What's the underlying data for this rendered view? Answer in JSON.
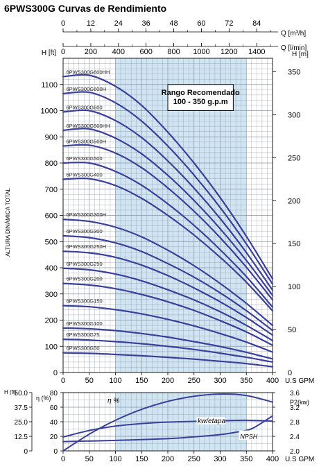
{
  "chart_data": [
    {
      "type": "line",
      "title": "6PWS300G Curvas de Rendimiento",
      "top_axes": [
        {
          "label": "Q [m³/h]",
          "ticks": [
            0,
            12,
            24,
            36,
            48,
            60,
            72,
            84
          ]
        },
        {
          "label": "Q [l/min]",
          "ticks": [
            0,
            200,
            400,
            600,
            800,
            1000,
            1200,
            1400
          ]
        }
      ],
      "xlabel": "U.S GPM",
      "xlim": [
        0,
        400
      ],
      "x_ticks": [
        0,
        50,
        100,
        150,
        200,
        250,
        300,
        350,
        400
      ],
      "ylabel": "ALTURA DINÁMICA TOTAL",
      "y_left_unit": "H [ft]",
      "y_left_ticks": [
        0,
        100,
        200,
        300,
        400,
        500,
        600,
        700,
        800,
        900,
        1000,
        1100
      ],
      "ylim": [
        0,
        1200
      ],
      "y_right_unit": "H [m]",
      "y_right_ticks": [
        0,
        50,
        100,
        150,
        200,
        250,
        300,
        350
      ],
      "grid": true,
      "annotation": {
        "title": "Rango Recomendado",
        "text": "100 - 350 g.p.m",
        "range": [
          100,
          350
        ]
      },
      "series": [
        {
          "name": "6PWS300G50",
          "points": [
            [
              0,
              75
            ],
            [
              50,
              73
            ],
            [
              100,
              69
            ],
            [
              150,
              64
            ],
            [
              200,
              58
            ],
            [
              250,
              51
            ],
            [
              300,
              43
            ],
            [
              350,
              34
            ],
            [
              400,
              22
            ]
          ]
        },
        {
          "name": "6PWS300G75",
          "points": [
            [
              0,
              127
            ],
            [
              50,
              124
            ],
            [
              100,
              118
            ],
            [
              150,
              110
            ],
            [
              200,
              100
            ],
            [
              250,
              88
            ],
            [
              300,
              74
            ],
            [
              350,
              58
            ],
            [
              400,
              40
            ]
          ]
        },
        {
          "name": "6PWS300G100",
          "points": [
            [
              0,
              170
            ],
            [
              50,
              167
            ],
            [
              100,
              160
            ],
            [
              150,
              149
            ],
            [
              200,
              135
            ],
            [
              250,
              118
            ],
            [
              300,
              99
            ],
            [
              350,
              77
            ],
            [
              400,
              52
            ]
          ]
        },
        {
          "name": "6PWS300G150",
          "points": [
            [
              0,
              255
            ],
            [
              50,
              251
            ],
            [
              100,
              240
            ],
            [
              150,
              224
            ],
            [
              200,
              203
            ],
            [
              250,
              178
            ],
            [
              300,
              149
            ],
            [
              350,
              116
            ],
            [
              400,
              78
            ]
          ]
        },
        {
          "name": "6PWS300G200",
          "points": [
            [
              0,
              340
            ],
            [
              50,
              334
            ],
            [
              100,
              320
            ],
            [
              150,
              298
            ],
            [
              200,
              270
            ],
            [
              250,
              237
            ],
            [
              300,
              198
            ],
            [
              350,
              155
            ],
            [
              400,
              104
            ]
          ]
        },
        {
          "name": "6PWS300G250",
          "points": [
            [
              0,
              398
            ],
            [
              50,
              392
            ],
            [
              100,
              376
            ],
            [
              150,
              350
            ],
            [
              200,
              316
            ],
            [
              250,
              277
            ],
            [
              300,
              232
            ],
            [
              350,
              180
            ],
            [
              400,
              122
            ]
          ]
        },
        {
          "name": "6PWS300G250H",
          "points": [
            [
              0,
              463
            ],
            [
              50,
              457
            ],
            [
              100,
              440
            ],
            [
              150,
              410
            ],
            [
              200,
              370
            ],
            [
              250,
              323
            ],
            [
              300,
              270
            ],
            [
              350,
              210
            ],
            [
              400,
              143
            ]
          ]
        },
        {
          "name": "6PWS300G300",
          "points": [
            [
              0,
              522
            ],
            [
              50,
              515
            ],
            [
              100,
              495
            ],
            [
              150,
              462
            ],
            [
              200,
              416
            ],
            [
              250,
              364
            ],
            [
              300,
              304
            ],
            [
              350,
              236
            ],
            [
              400,
              161
            ]
          ]
        },
        {
          "name": "6PWS300G300H",
          "points": [
            [
              0,
              585
            ],
            [
              50,
              577
            ],
            [
              100,
              555
            ],
            [
              150,
              518
            ],
            [
              200,
              467
            ],
            [
              250,
              408
            ],
            [
              300,
              340
            ],
            [
              350,
              264
            ],
            [
              400,
              180
            ]
          ]
        },
        {
          "name": "6PWS300G400",
          "points": [
            [
              0,
              738
            ],
            [
              50,
              740
            ],
            [
              100,
              714
            ],
            [
              150,
              665
            ],
            [
              200,
              600
            ],
            [
              250,
              525
            ],
            [
              300,
              440
            ],
            [
              350,
              345
            ],
            [
              400,
              236
            ]
          ]
        },
        {
          "name": "6PWS300G500",
          "points": [
            [
              0,
              800
            ],
            [
              50,
              800
            ],
            [
              100,
              768
            ],
            [
              150,
              715
            ],
            [
              200,
              644
            ],
            [
              250,
              562
            ],
            [
              300,
              469
            ],
            [
              350,
              366
            ],
            [
              400,
              250
            ]
          ]
        },
        {
          "name": "6PWS300G500H",
          "points": [
            [
              0,
              865
            ],
            [
              50,
              868
            ],
            [
              100,
              838
            ],
            [
              150,
              782
            ],
            [
              200,
              705
            ],
            [
              250,
              616
            ],
            [
              300,
              515
            ],
            [
              350,
              402
            ],
            [
              400,
              278
            ]
          ]
        },
        {
          "name": "6PWS300G500HH",
          "points": [
            [
              0,
              925
            ],
            [
              50,
              930
            ],
            [
              100,
              895
            ],
            [
              150,
              835
            ],
            [
              200,
              753
            ],
            [
              250,
              657
            ],
            [
              300,
              549
            ],
            [
              350,
              428
            ],
            [
              400,
              295
            ]
          ]
        },
        {
          "name": "6PWS300G600",
          "points": [
            [
              0,
              995
            ],
            [
              50,
              1000
            ],
            [
              100,
              962
            ],
            [
              150,
              897
            ],
            [
              200,
              808
            ],
            [
              250,
              704
            ],
            [
              300,
              588
            ],
            [
              350,
              458
            ],
            [
              400,
              315
            ]
          ]
        },
        {
          "name": "6PWS300G600H",
          "points": [
            [
              0,
              1065
            ],
            [
              50,
              1070
            ],
            [
              100,
              1030
            ],
            [
              150,
              960
            ],
            [
              200,
              865
            ],
            [
              250,
              754
            ],
            [
              300,
              630
            ],
            [
              350,
              491
            ],
            [
              400,
              338
            ]
          ]
        },
        {
          "name": "6PWS300G600HH",
          "points": [
            [
              0,
              1130
            ],
            [
              50,
              1135
            ],
            [
              100,
              1093
            ],
            [
              150,
              1020
            ],
            [
              200,
              918
            ],
            [
              250,
              800
            ],
            [
              300,
              668
            ],
            [
              350,
              520
            ],
            [
              400,
              358
            ]
          ]
        }
      ]
    },
    {
      "type": "line",
      "xlabel": "U.S GPM",
      "xlim": [
        0,
        400
      ],
      "x_ticks": [
        0,
        50,
        100,
        150,
        200,
        250,
        300,
        350,
        400
      ],
      "y_axes": [
        {
          "label": "H (ft)",
          "ticks": [
            0,
            12.5,
            25.0,
            37.5,
            50.0
          ]
        },
        {
          "label": "η (%)",
          "ticks": [
            0,
            20,
            40,
            60,
            80
          ]
        },
        {
          "label": "P2(kw)",
          "ticks": [
            2.0,
            2.4,
            2.8,
            3.2,
            3.6
          ]
        }
      ],
      "series": [
        {
          "name": "η %",
          "axis": "η (%)",
          "points": [
            [
              0,
              0
            ],
            [
              50,
              23
            ],
            [
              100,
              42
            ],
            [
              150,
              57
            ],
            [
              200,
              68
            ],
            [
              250,
              75
            ],
            [
              300,
              78
            ],
            [
              350,
              76
            ],
            [
              400,
              67
            ]
          ]
        },
        {
          "name": "kw/etapa",
          "axis": "P2(kw)",
          "points": [
            [
              0,
              2.38
            ],
            [
              50,
              2.56
            ],
            [
              100,
              2.68
            ],
            [
              150,
              2.75
            ],
            [
              200,
              2.79
            ],
            [
              250,
              2.81
            ],
            [
              300,
              2.83
            ],
            [
              350,
              2.84
            ],
            [
              400,
              2.82
            ]
          ]
        },
        {
          "name": "NPSH",
          "axis": "H (ft)",
          "points": [
            [
              0,
              8
            ],
            [
              100,
              9
            ],
            [
              200,
              10.5
            ],
            [
              250,
              12
            ],
            [
              300,
              14
            ],
            [
              330,
              16
            ],
            [
              360,
              19
            ],
            [
              400,
              30
            ]
          ]
        }
      ]
    }
  ]
}
